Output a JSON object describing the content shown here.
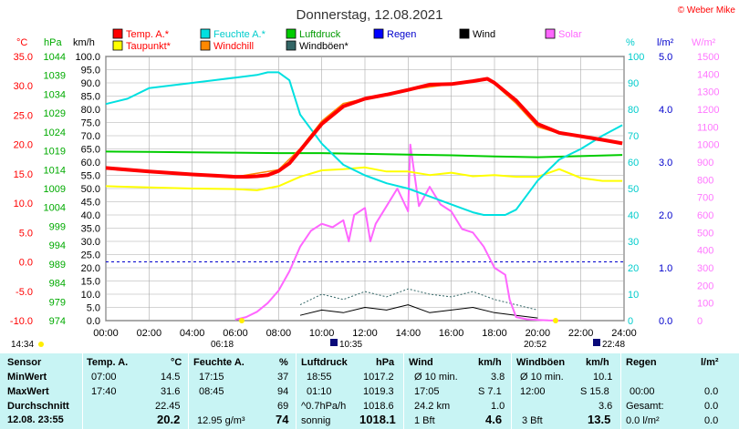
{
  "title": "Donnerstag, 12.08.2021",
  "copyright": "© Weber Mike",
  "legend": [
    {
      "label": "Temp. A.*",
      "color": "#ff0000"
    },
    {
      "label": "Feuchte A.*",
      "color": "#00e0e0"
    },
    {
      "label": "Luftdruck",
      "color": "#00cc00"
    },
    {
      "label": "Regen",
      "color": "#0000ff"
    },
    {
      "label": "Wind",
      "color": "#000000"
    },
    {
      "label": "Solar",
      "color": "#ff66ff"
    },
    {
      "label": "Taupunkt*",
      "color": "#ffff00"
    },
    {
      "label": "Windchill",
      "color": "#ff8800"
    },
    {
      "label": "Windböen*",
      "color": "#336666"
    }
  ],
  "axis_units": {
    "temp": "°C",
    "pressure": "hPa",
    "wind": "km/h",
    "humidity": "%",
    "rain": "l/m²",
    "solar": "W/m²"
  },
  "sun_events": {
    "sunrise": "06:18",
    "sunset": "20:52",
    "left_time": "14:34",
    "moon1": "10:35",
    "moon2": "22:48"
  },
  "chart_data": {
    "type": "line",
    "x_ticks": [
      "00:00",
      "02:00",
      "04:00",
      "06:00",
      "08:00",
      "10:00",
      "12:00",
      "14:00",
      "16:00",
      "18:00",
      "20:00",
      "22:00",
      "24:00"
    ],
    "wind_axis": {
      "min": 0,
      "max": 100,
      "ticks": [
        "0.0",
        "5.0",
        "10.0",
        "15.0",
        "20.0",
        "25.0",
        "30.0",
        "35.0",
        "40.0",
        "45.0",
        "50.0",
        "55.0",
        "60.0",
        "65.0",
        "70.0",
        "75.0",
        "80.0",
        "85.0",
        "90.0",
        "95.0",
        "100.0"
      ]
    },
    "temp_axis": {
      "min": -10,
      "max": 35,
      "ticks": [
        "-10.0",
        "-5.0",
        "0.0",
        "5.0",
        "10.0",
        "15.0",
        "20.0",
        "25.0",
        "30.0",
        "35.0"
      ]
    },
    "pressure_axis": {
      "min": 974,
      "max": 1044,
      "ticks": [
        "974",
        "979",
        "984",
        "989",
        "994",
        "999",
        "1004",
        "1009",
        "1014",
        "1019",
        "1024",
        "1029",
        "1034",
        "1039",
        "1044"
      ]
    },
    "humidity_axis": {
      "min": 0,
      "max": 100,
      "ticks": [
        "0",
        "10",
        "20",
        "30",
        "40",
        "50",
        "60",
        "70",
        "80",
        "90",
        "100"
      ]
    },
    "rain_axis": {
      "min": 0,
      "max": 5,
      "ticks": [
        "0.0",
        "1.0",
        "2.0",
        "3.0",
        "4.0",
        "5.0"
      ]
    },
    "solar_axis": {
      "min": 0,
      "max": 1500,
      "ticks": [
        "0",
        "100",
        "200",
        "300",
        "400",
        "500",
        "600",
        "700",
        "800",
        "900",
        "1000",
        "1100",
        "1200",
        "1300",
        "1400",
        "1500"
      ]
    },
    "series": [
      {
        "name": "Temp. A.*",
        "unit": "°C",
        "color": "#ff0000",
        "x": [
          0,
          2,
          4,
          5,
          6,
          6.5,
          7,
          7.5,
          8,
          8.5,
          9,
          10,
          11,
          12,
          13,
          14,
          15,
          16,
          17,
          17.67,
          18,
          19,
          20,
          21,
          22,
          23,
          23.92
        ],
        "y": [
          16,
          15.4,
          14.9,
          14.7,
          14.5,
          14.5,
          14.6,
          14.8,
          15.5,
          16.8,
          19,
          23.5,
          26.5,
          27.8,
          28.5,
          29.3,
          30.2,
          30.3,
          30.8,
          31.2,
          30.5,
          27.5,
          23.5,
          22,
          21.4,
          20.8,
          20.2
        ]
      },
      {
        "name": "Windchill",
        "unit": "°C",
        "color": "#ff8800",
        "x": [
          0,
          6,
          8,
          9,
          10,
          11,
          12,
          14,
          16,
          17.67,
          18,
          19,
          20,
          21,
          22,
          23,
          23.92
        ],
        "y": [
          16,
          14.5,
          15.7,
          19.3,
          24,
          27,
          27.8,
          29.3,
          30.3,
          31.2,
          30.3,
          27,
          23,
          21.9,
          21.4,
          20.8,
          20.2
        ]
      },
      {
        "name": "Taupunkt*",
        "unit": "°C",
        "color": "#ffff00",
        "x": [
          0,
          2,
          4,
          6,
          7,
          8,
          9,
          10,
          11,
          12,
          13,
          14,
          15,
          16,
          17,
          18,
          19,
          20,
          21,
          22,
          23,
          23.92
        ],
        "y": [
          12.9,
          12.7,
          12.5,
          12.4,
          12.2,
          12.9,
          14.5,
          15.6,
          15.8,
          16.1,
          15.4,
          15.4,
          14.8,
          15.2,
          14.6,
          14.8,
          14.5,
          14.5,
          15.8,
          14.3,
          13.8,
          13.8
        ]
      },
      {
        "name": "Feuchte A.*",
        "unit": "%",
        "color": "#00e0e0",
        "x": [
          0,
          1,
          2,
          3,
          4,
          5,
          6,
          7,
          7.5,
          8,
          8.5,
          9,
          10,
          11,
          12,
          13,
          14,
          15,
          16,
          17,
          17.5,
          18,
          18.5,
          19,
          20,
          21,
          22,
          23,
          23.92
        ],
        "y": [
          82,
          84,
          88,
          89,
          90,
          91,
          92,
          93,
          94,
          94,
          91,
          78,
          67,
          59,
          55,
          52,
          50,
          47,
          44,
          41,
          40,
          40,
          40,
          42,
          53,
          61,
          65,
          70,
          74
        ]
      },
      {
        "name": "Luftdruck",
        "unit": "hPa",
        "color": "#00cc00",
        "x": [
          0,
          2,
          4,
          6,
          8,
          10,
          12,
          14,
          16,
          18,
          20,
          22,
          23.92
        ],
        "y": [
          1018.8,
          1018.7,
          1018.6,
          1018.5,
          1018.4,
          1018.4,
          1018.2,
          1018.0,
          1017.8,
          1017.5,
          1017.3,
          1017.6,
          1017.9
        ]
      },
      {
        "name": "Solar",
        "unit": "W/m²",
        "color": "#ff66ff",
        "x": [
          6,
          6.5,
          7,
          7.5,
          8,
          8.5,
          9,
          9.5,
          10,
          10.5,
          11,
          11.25,
          11.5,
          12,
          12.25,
          12.5,
          13,
          13.5,
          14,
          14.1,
          14.5,
          15,
          15.5,
          16,
          16.5,
          17,
          17.5,
          18,
          18.5,
          18.7,
          19,
          19.5,
          20,
          20.5,
          21
        ],
        "y": [
          5,
          20,
          50,
          100,
          170,
          280,
          420,
          510,
          550,
          530,
          570,
          450,
          600,
          640,
          450,
          550,
          650,
          750,
          620,
          1000,
          650,
          760,
          660,
          620,
          520,
          500,
          420,
          300,
          260,
          120,
          20,
          8,
          4,
          1,
          0
        ]
      },
      {
        "name": "Wind",
        "unit": "km/h",
        "color": "#000000",
        "x": [
          9,
          10,
          11,
          12,
          13,
          14,
          15,
          16,
          17,
          18,
          19,
          20
        ],
        "y": [
          2,
          4,
          3,
          5,
          4,
          6,
          3,
          4,
          5,
          3,
          2,
          1
        ]
      },
      {
        "name": "Windböen*",
        "unit": "km/h",
        "color": "#336666",
        "x": [
          9,
          10,
          11,
          12,
          13,
          14,
          15,
          16,
          17,
          18,
          19,
          20
        ],
        "y": [
          6,
          10,
          8,
          11,
          9,
          12,
          10,
          9,
          11,
          8,
          6,
          4
        ]
      }
    ]
  },
  "table": {
    "headers": {
      "sensor": "Sensor",
      "temp": "Temp. A.",
      "temp_unit": "°C",
      "hum": "Feuchte A.",
      "hum_unit": "%",
      "press": "Luftdruck",
      "press_unit": "hPa",
      "wind": "Wind",
      "wind_unit": "km/h",
      "gust": "Windböen",
      "gust_unit": "km/h",
      "rain": "Regen",
      "rain_unit": "l/m²"
    },
    "min": {
      "label": "MinWert",
      "temp_time": "07:00",
      "temp_val": "14.5",
      "hum_time": "17:15",
      "hum_val": "37",
      "press_time": "18:55",
      "press_val": "1017.2",
      "wind_text": "Ø 10 min.",
      "wind_val": "3.8",
      "gust_text": "Ø 10 min.",
      "gust_val": "10.1"
    },
    "max": {
      "label": "MaxWert",
      "temp_time": "17:40",
      "temp_val": "31.6",
      "hum_time": "08:45",
      "hum_val": "94",
      "press_time": "01:10",
      "press_val": "1019.3",
      "wind_text": "17:05",
      "wind_dir": "S 7.1",
      "gust_text": "12:00",
      "gust_dir": "S 15.8",
      "rain_time": "00:00",
      "rain_val": "0.0"
    },
    "avg": {
      "label": "Durchschnitt",
      "temp_val": "22.45",
      "hum_val": "69",
      "press_text": "^0.7hPa/h",
      "press_val": "1018.6",
      "wind_text": "24.2 km",
      "wind_val": "1.0",
      "gust_val": "3.6",
      "rain_text": "Gesamt:",
      "rain_val": "0.0"
    },
    "cur": {
      "label": "12.08. 23:55",
      "temp_val": "20.2",
      "hum_text": "12.95 g/m³",
      "hum_val": "74",
      "press_text": "sonnig",
      "press_val": "1018.1",
      "wind_text": "1 Bft",
      "wind_val": "4.6",
      "gust_text": "3 Bft",
      "gust_val": "13.5",
      "rain_text": "0.0 l/m²",
      "rain_val": "0.0"
    }
  }
}
